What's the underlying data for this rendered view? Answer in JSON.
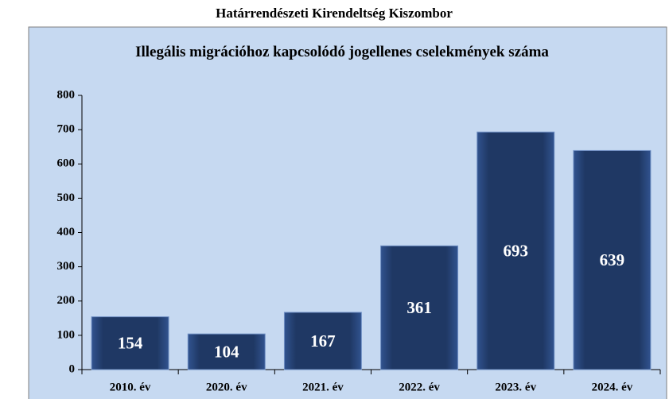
{
  "chart_data": {
    "type": "bar",
    "title": "Határrendészeti Kirendeltség Kiszombor",
    "subtitle": "Illegális migrációhoz kapcsolódó jogellenes cselekmények száma",
    "categories": [
      "2010. év",
      "2020. év",
      "2021. év",
      "2022. év",
      "2023. év",
      "2024. év"
    ],
    "values": [
      154,
      104,
      167,
      361,
      693,
      639
    ],
    "color": "#1f3864",
    "ylim": [
      0,
      800
    ],
    "yticks": [
      0,
      100,
      200,
      300,
      400,
      500,
      600,
      700,
      800
    ],
    "grid": false
  }
}
